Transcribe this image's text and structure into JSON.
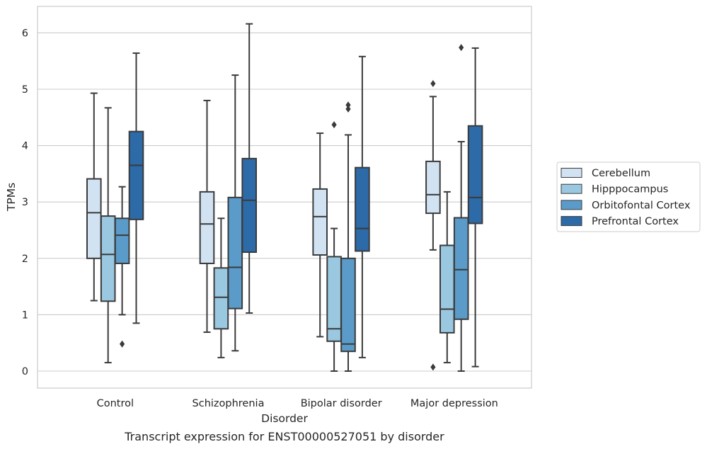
{
  "chart_data": {
    "type": "boxplot",
    "title": "Transcript expression for ENST00000527051 by disorder",
    "xlabel": "Disorder",
    "ylabel": "TPMs",
    "ylim": [
      -0.3,
      6.5
    ],
    "yticks": [
      0,
      1,
      2,
      3,
      4,
      5,
      6
    ],
    "grid": true,
    "legend_position": "right",
    "categories": [
      "Control",
      "Schizophrenia",
      "Bipolar disorder",
      "Major depression"
    ],
    "series": [
      {
        "name": "Cerebellum",
        "color": "#d1e2f2",
        "boxes": [
          {
            "whisker_low": 1.25,
            "q1": 2.0,
            "median": 2.81,
            "q3": 3.41,
            "whisker_high": 4.93,
            "outliers": []
          },
          {
            "whisker_low": 0.69,
            "q1": 1.91,
            "median": 2.61,
            "q3": 3.18,
            "whisker_high": 4.8,
            "outliers": []
          },
          {
            "whisker_low": 0.61,
            "q1": 2.06,
            "median": 2.74,
            "q3": 3.23,
            "whisker_high": 4.22,
            "outliers": []
          },
          {
            "whisker_low": 2.15,
            "q1": 2.8,
            "median": 3.13,
            "q3": 3.72,
            "whisker_high": 4.87,
            "outliers": [
              0.07,
              5.1
            ]
          }
        ]
      },
      {
        "name": "Hipppocampus",
        "color": "#9ac8e0",
        "boxes": [
          {
            "whisker_low": 0.15,
            "q1": 1.24,
            "median": 2.07,
            "q3": 2.75,
            "whisker_high": 4.67,
            "outliers": []
          },
          {
            "whisker_low": 0.24,
            "q1": 0.75,
            "median": 1.31,
            "q3": 1.83,
            "whisker_high": 2.71,
            "outliers": []
          },
          {
            "whisker_low": 0.0,
            "q1": 0.53,
            "median": 0.75,
            "q3": 2.03,
            "whisker_high": 2.53,
            "outliers": [
              4.37
            ]
          },
          {
            "whisker_low": 0.15,
            "q1": 0.68,
            "median": 1.1,
            "q3": 2.23,
            "whisker_high": 3.18,
            "outliers": []
          }
        ]
      },
      {
        "name": "Orbitofontal Cortex",
        "color": "#5a9bc9",
        "boxes": [
          {
            "whisker_low": 1.0,
            "q1": 1.91,
            "median": 2.41,
            "q3": 2.71,
            "whisker_high": 3.27,
            "outliers": [
              0.48
            ]
          },
          {
            "whisker_low": 0.36,
            "q1": 1.11,
            "median": 1.84,
            "q3": 3.08,
            "whisker_high": 5.25,
            "outliers": []
          },
          {
            "whisker_low": 0.0,
            "q1": 0.35,
            "median": 0.48,
            "q3": 2.0,
            "whisker_high": 4.19,
            "outliers": [
              4.65,
              4.72
            ]
          },
          {
            "whisker_low": 0.0,
            "q1": 0.92,
            "median": 1.8,
            "q3": 2.72,
            "whisker_high": 4.07,
            "outliers": [
              5.74
            ]
          }
        ]
      },
      {
        "name": "Prefrontal Cortex",
        "color": "#2c6aa8",
        "boxes": [
          {
            "whisker_low": 0.85,
            "q1": 2.69,
            "median": 3.65,
            "q3": 4.25,
            "whisker_high": 5.64,
            "outliers": []
          },
          {
            "whisker_low": 1.03,
            "q1": 2.11,
            "median": 3.03,
            "q3": 3.77,
            "whisker_high": 6.16,
            "outliers": []
          },
          {
            "whisker_low": 0.24,
            "q1": 2.13,
            "median": 2.53,
            "q3": 3.61,
            "whisker_high": 5.58,
            "outliers": []
          },
          {
            "whisker_low": 0.08,
            "q1": 2.62,
            "median": 3.08,
            "q3": 4.35,
            "whisker_high": 5.73,
            "outliers": []
          }
        ]
      }
    ]
  }
}
